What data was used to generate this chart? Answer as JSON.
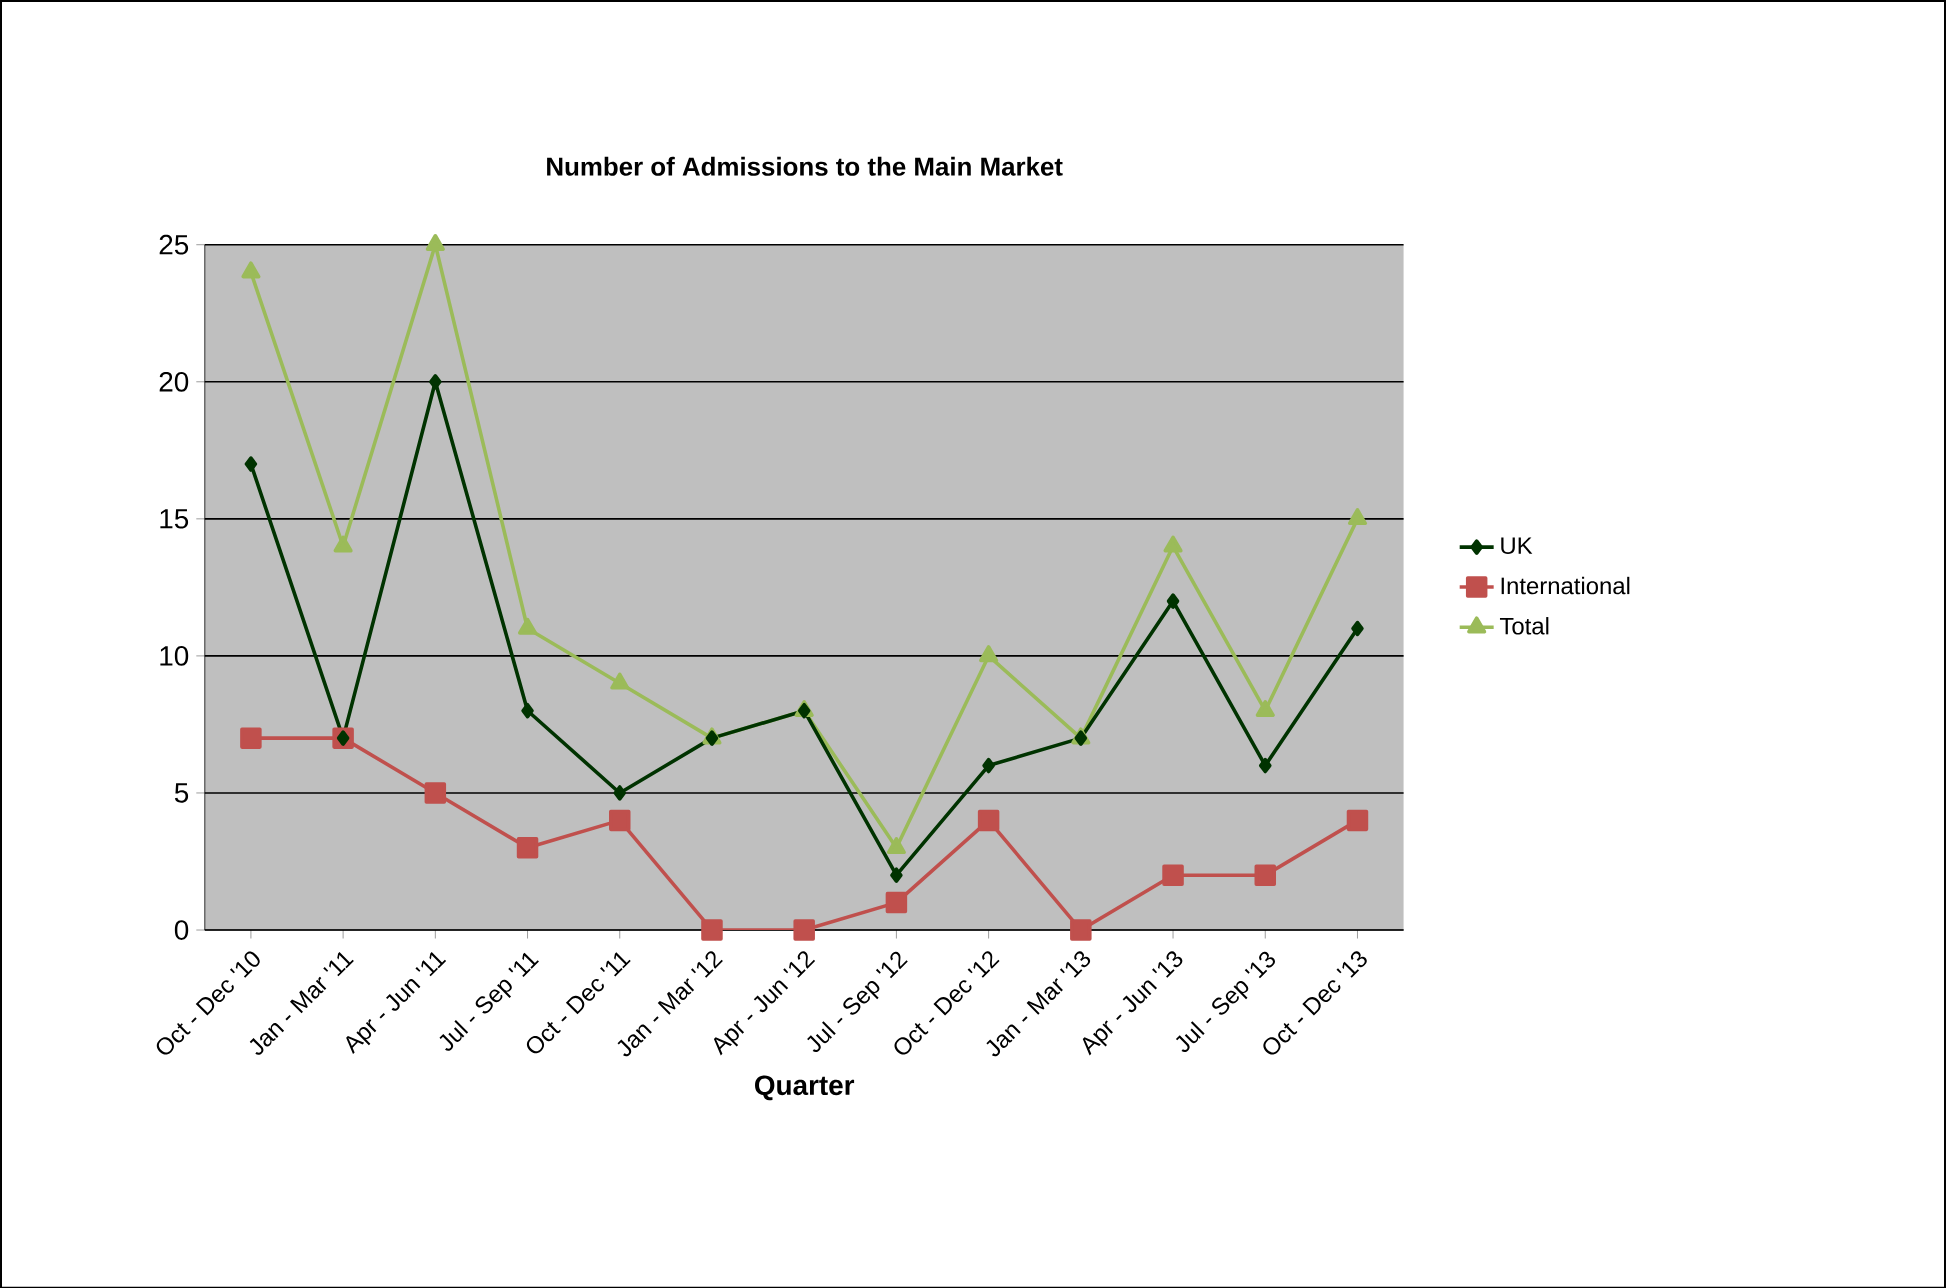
{
  "chart_data": {
    "type": "line",
    "title": "Number of Admissions to the Main Market",
    "xlabel": "Quarter",
    "categories": [
      "Oct - Dec '10",
      "Jan - Mar '11",
      "Apr - Jun '11",
      "Jul - Sep '11",
      "Oct - Dec '11",
      "Jan - Mar '12",
      "Apr - Jun '12",
      "Jul - Sep '12",
      "Oct - Dec '12",
      "Jan - Mar '13",
      "Apr - Jun '13",
      "Jul - Sep '13",
      "Oct - Dec '13"
    ],
    "series": [
      {
        "name": "UK",
        "color": "#003300",
        "marker": "diamond",
        "values": [
          17,
          7,
          20,
          8,
          5,
          7,
          8,
          2,
          6,
          7,
          12,
          6,
          11
        ]
      },
      {
        "name": "International",
        "color": "#c0504d",
        "marker": "square",
        "values": [
          7,
          7,
          5,
          3,
          4,
          0,
          0,
          1,
          4,
          0,
          2,
          2,
          4
        ]
      },
      {
        "name": "Total",
        "color": "#9bbb59",
        "marker": "triangle",
        "values": [
          24,
          14,
          25,
          11,
          9,
          7,
          8,
          3,
          10,
          7,
          14,
          8,
          15
        ]
      }
    ],
    "ylim": [
      0,
      25
    ],
    "yticks": [
      0,
      5,
      10,
      15,
      20,
      25
    ],
    "grid": "y",
    "legend": "right"
  }
}
